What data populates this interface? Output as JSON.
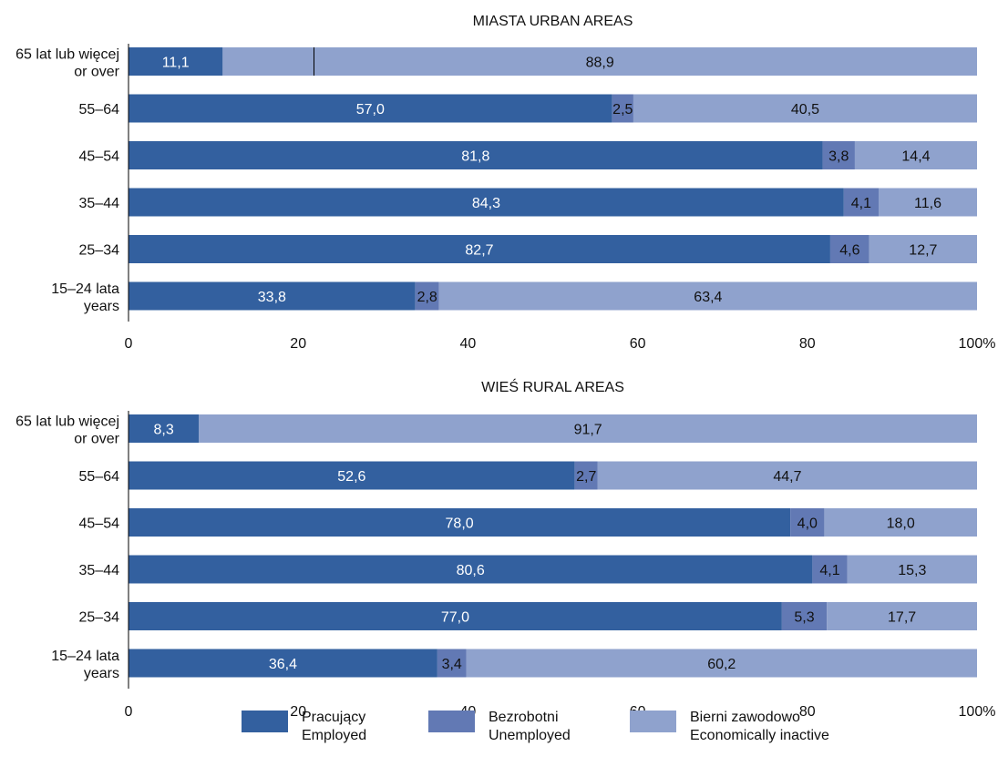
{
  "colors": {
    "employed": "#33609F",
    "unemployed": "#6279B4",
    "inactive": "#8FA2CD",
    "axis": "#000000",
    "text_dark": "#111111",
    "text_light": "#ffffff"
  },
  "legend": [
    {
      "key": "employed",
      "line1": "Pracujący",
      "line2": "Employed"
    },
    {
      "key": "unemployed",
      "line1": "Bezrobotni",
      "line2": "Unemployed"
    },
    {
      "key": "inactive",
      "line1": "Bierni zawodowo",
      "line2": "Economically inactive"
    }
  ],
  "chart_data": [
    {
      "type": "bar",
      "orientation": "horizontal",
      "stacked": true,
      "title": "MIASTA   URBAN AREAS",
      "categories": [
        [
          "65 lat lub więcej",
          "or over"
        ],
        [
          "55–64"
        ],
        [
          "45–54"
        ],
        [
          "35–44"
        ],
        [
          "25–34"
        ],
        [
          "15–24 lata",
          "years"
        ]
      ],
      "series": [
        {
          "name": "Pracujący Employed",
          "key": "employed",
          "values": [
            11.1,
            57.0,
            81.8,
            84.3,
            82.7,
            33.8
          ],
          "labels": [
            "11,1",
            "57,0",
            "81,8",
            "84,3",
            "82,7",
            "33,8"
          ]
        },
        {
          "name": "Bezrobotni Unemployed",
          "key": "unemployed",
          "values": [
            null,
            2.5,
            3.8,
            4.1,
            4.6,
            2.8
          ],
          "labels": [
            "",
            "2,5",
            "3,8",
            "4,1",
            "4,6",
            "2,8"
          ]
        },
        {
          "name": "Bierni zawodowo Economically inactive",
          "key": "inactive",
          "values": [
            88.9,
            40.5,
            14.4,
            11.6,
            12.7,
            63.4
          ],
          "labels": [
            "88,9",
            "40,5",
            "14,4",
            "11,6",
            "12,7",
            "63,4"
          ]
        }
      ],
      "xlim": [
        0,
        100
      ],
      "xticks": [
        "0",
        "20",
        "40",
        "60",
        "80",
        "100%"
      ]
    },
    {
      "type": "bar",
      "orientation": "horizontal",
      "stacked": true,
      "title": "WIEŚ   RURAL AREAS",
      "categories": [
        [
          "65 lat lub więcej",
          "or over"
        ],
        [
          "55–64"
        ],
        [
          "45–54"
        ],
        [
          "35–44"
        ],
        [
          "25–34"
        ],
        [
          "15–24 lata",
          "years"
        ]
      ],
      "series": [
        {
          "name": "Pracujący Employed",
          "key": "employed",
          "values": [
            8.3,
            52.6,
            78.0,
            80.6,
            77.0,
            36.4
          ],
          "labels": [
            "8,3",
            "52,6",
            "78,0",
            "80,6",
            "77,0",
            "36,4"
          ]
        },
        {
          "name": "Bezrobotni Unemployed",
          "key": "unemployed",
          "values": [
            null,
            2.7,
            4.0,
            4.1,
            5.3,
            3.4
          ],
          "labels": [
            "",
            "2,7",
            "4,0",
            "4,1",
            "5,3",
            "3,4"
          ]
        },
        {
          "name": "Bierni zawodowo Economically inactive",
          "key": "inactive",
          "values": [
            91.7,
            44.7,
            18.0,
            15.3,
            17.7,
            60.2
          ],
          "labels": [
            "91,7",
            "44,7",
            "18,0",
            "15,3",
            "17,7",
            "60,2"
          ]
        }
      ],
      "xlim": [
        0,
        100
      ],
      "xticks": [
        "0",
        "20",
        "40",
        "60",
        "80",
        "100%"
      ]
    }
  ]
}
